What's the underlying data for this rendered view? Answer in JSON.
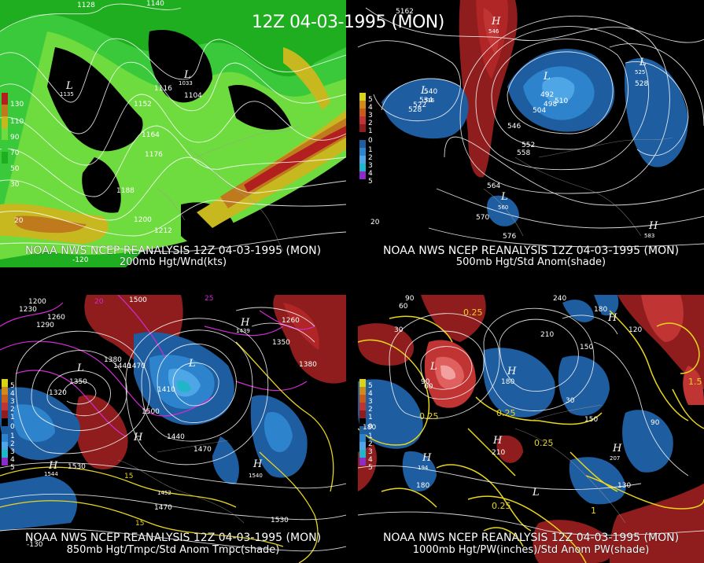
{
  "main_title": "12Z 04-03-1995 (MON)",
  "panels": [
    {
      "caption_line1": "NOAA NWS NCEP REANALYSIS 12Z 04-03-1995 (MON)",
      "caption_line2": "200mb Hgt/Wnd(kts)",
      "legend": [
        "130",
        "110",
        "90",
        "70",
        "50",
        "30"
      ],
      "labels": [
        "1128",
        "1140",
        "1135",
        "1152",
        "1116",
        "1104",
        "1164",
        "1176",
        "1188",
        "1200",
        "1212",
        "1033",
        "-120",
        "20"
      ],
      "pressure_centers": [
        "L",
        "L"
      ]
    },
    {
      "caption_line1": "NOAA NWS NCEP REANALYSIS 12Z 04-03-1995 (MON)",
      "caption_line2": "500mb Hgt/Std Anom(shade)",
      "legend": [
        "5",
        "4",
        "3",
        "2",
        "1",
        "0",
        "1",
        "2",
        "3",
        "4",
        "5"
      ],
      "labels": [
        "5162",
        "546",
        "540",
        "534",
        "528",
        "522",
        "516",
        "492",
        "498",
        "504",
        "510",
        "546",
        "552",
        "558",
        "564",
        "570",
        "576",
        "525",
        "528",
        "20",
        "560",
        "583"
      ],
      "pressure_centers": [
        "L",
        "L",
        "L",
        "L",
        "H",
        "H"
      ]
    },
    {
      "caption_line1": "NOAA NWS NCEP REANALYSIS 12Z 04-03-1995 (MON)",
      "caption_line2": "850mb Hgt/Tmpc/Std Anom Tmpc(shade)",
      "legend": [
        "5",
        "4",
        "3",
        "2",
        "1",
        "0",
        "1",
        "2",
        "3",
        "4",
        "5"
      ],
      "labels": [
        "1200",
        "1230",
        "1290",
        "1260",
        "1500",
        "1380",
        "1440",
        "1470",
        "1350",
        "1320",
        "1410",
        "1500",
        "1440",
        "1470",
        "1530",
        "1544",
        "1439",
        "1380",
        "1350",
        "1260",
        "15",
        "15",
        "1470",
        "1452",
        "1530",
        "1540",
        "-130",
        "25",
        "20"
      ],
      "pressure_centers": [
        "L",
        "L",
        "H",
        "H",
        "H",
        "H"
      ]
    },
    {
      "caption_line1": "NOAA NWS NCEP REANALYSIS 12Z 04-03-1995 (MON)",
      "caption_line2": "1000mb Hgt/PW(inches)/Std Anom PW(shade)",
      "legend": [
        "5",
        "4",
        "3",
        "2",
        "1",
        "0",
        "1",
        "2",
        "3",
        "4",
        "5"
      ],
      "labels": [
        "240",
        "180",
        "90",
        "60",
        "30",
        "0.25",
        "150",
        "120",
        "210",
        "180",
        "90",
        "60",
        "30",
        "0.25",
        "180",
        "210",
        "0.25",
        "0.25",
        "1.5",
        "194",
        "207",
        "180",
        "1",
        "0.25",
        "130",
        "150",
        "90"
      ],
      "pressure_centers": [
        "L",
        "L",
        "H",
        "H",
        "H",
        "H",
        "H"
      ]
    }
  ]
}
